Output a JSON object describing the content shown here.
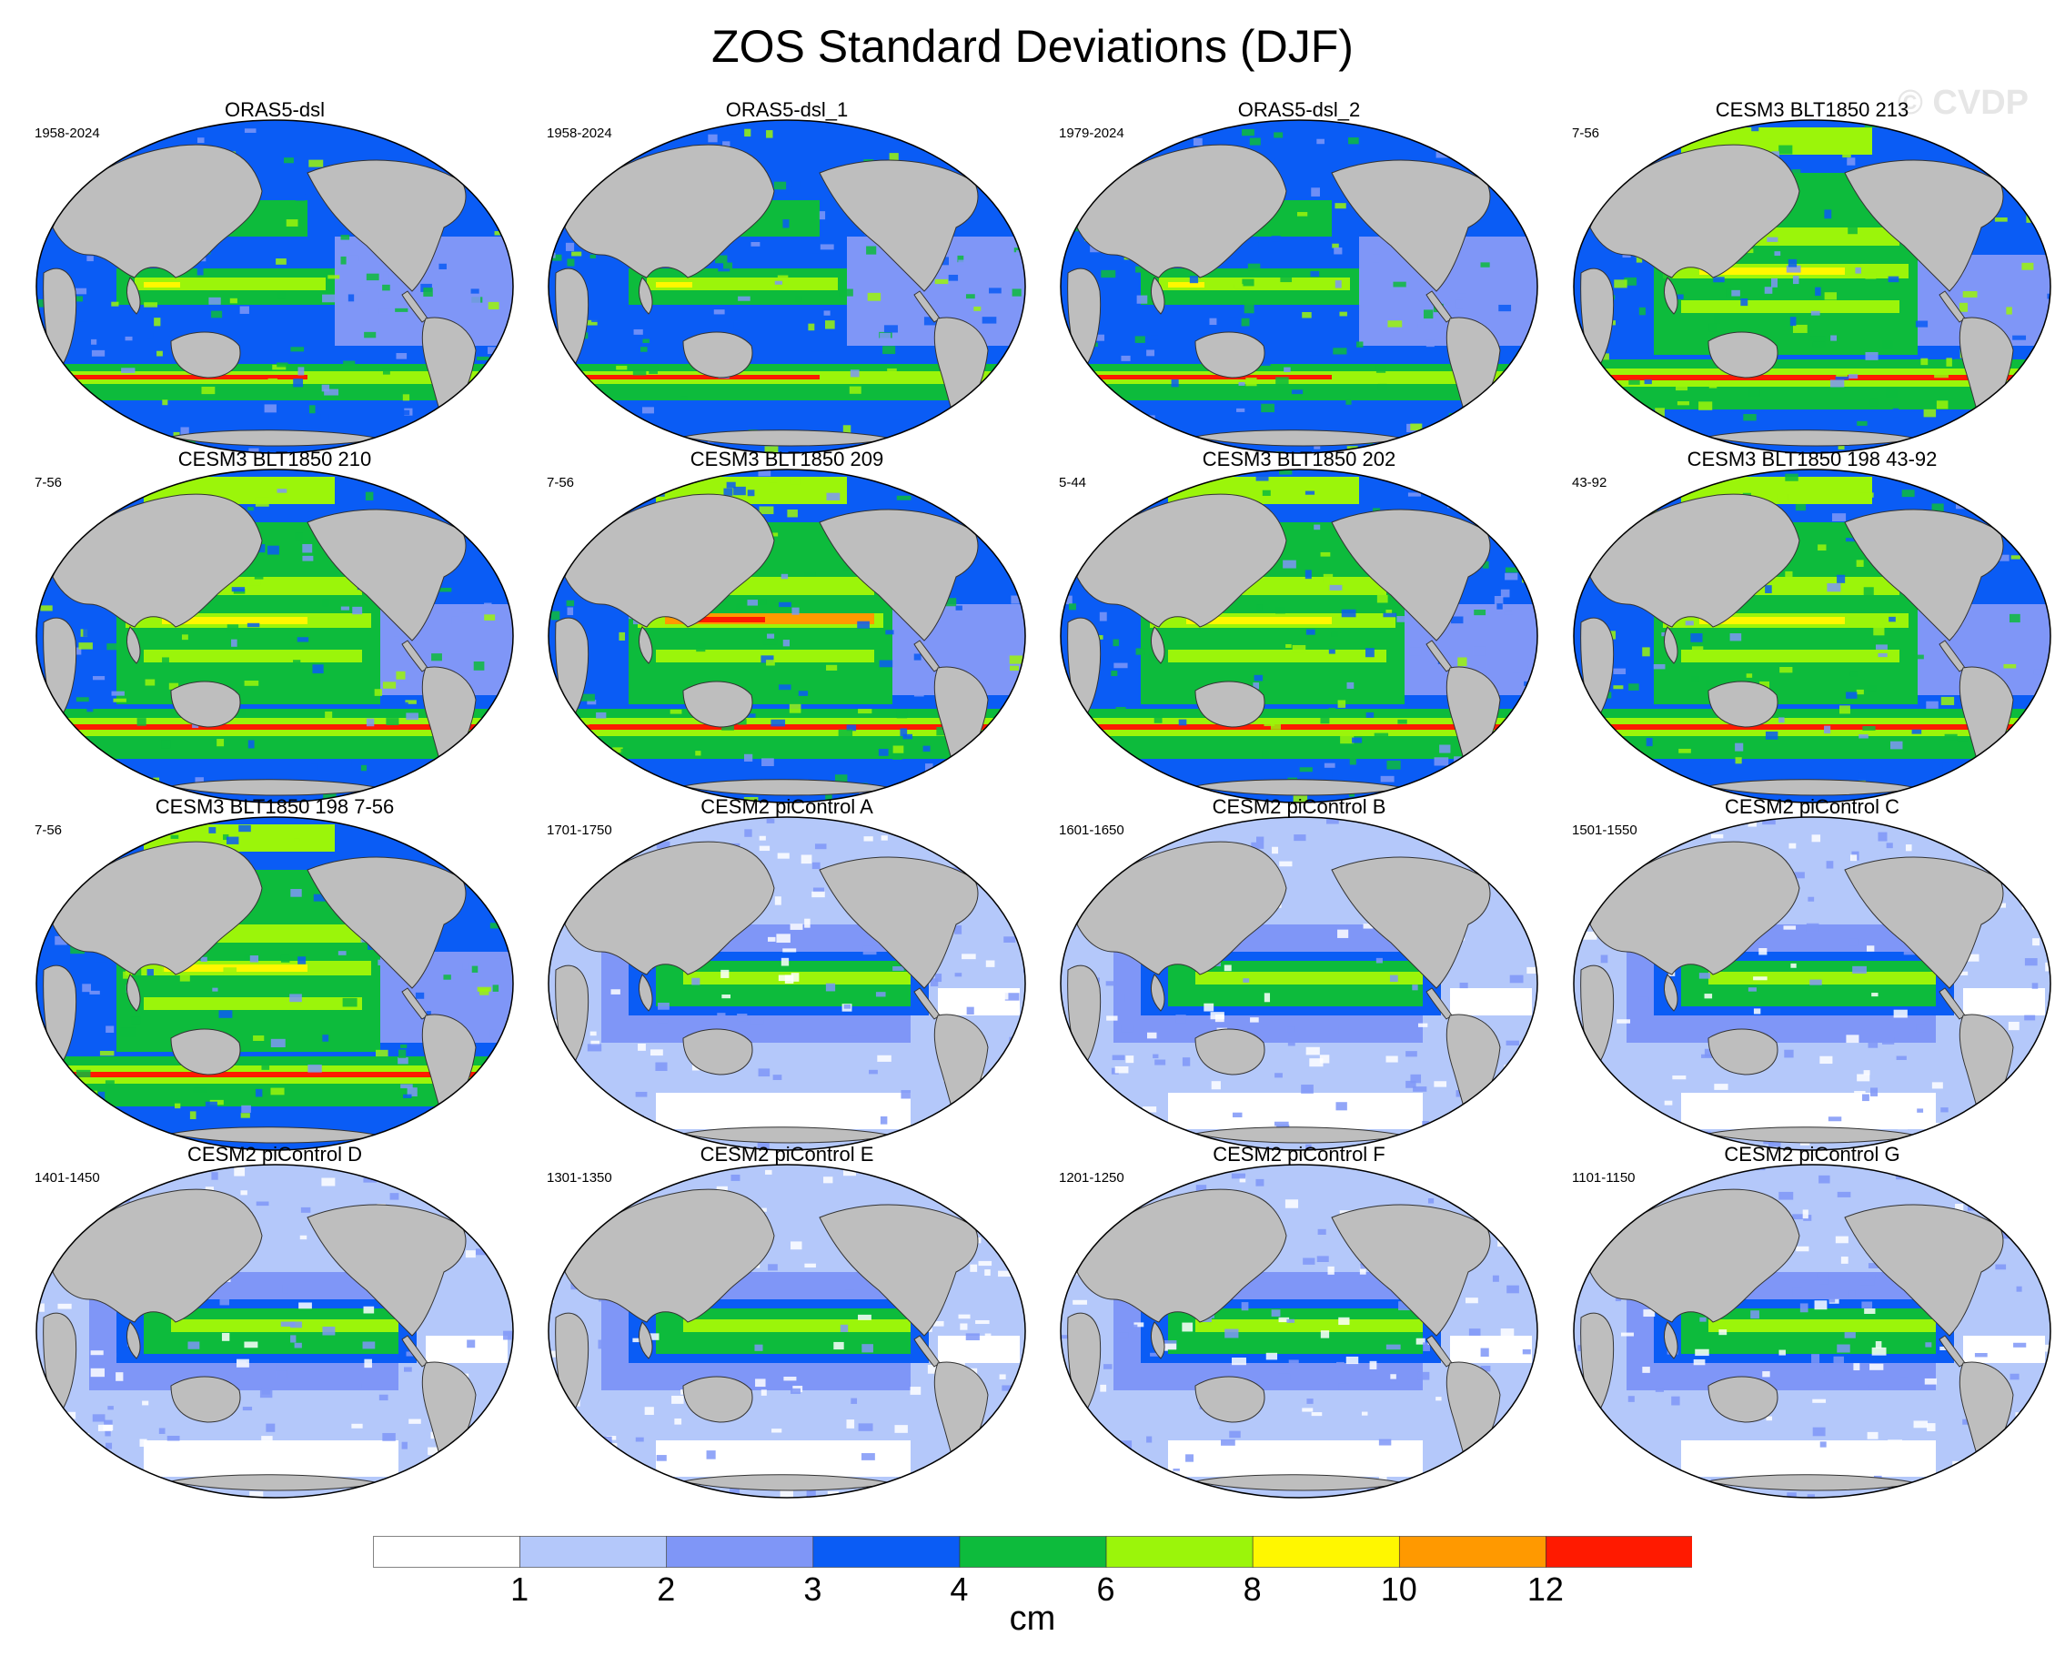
{
  "title": "ZOS Standard Deviations (DJF)",
  "watermark": "© CVDP",
  "panels": [
    {
      "title": "ORAS5-dsl",
      "years": "1958-2024",
      "kind": "obs"
    },
    {
      "title": "ORAS5-dsl_1",
      "years": "1958-2024",
      "kind": "obs"
    },
    {
      "title": "ORAS5-dsl_2",
      "years": "1979-2024",
      "kind": "obs"
    },
    {
      "title": "CESM3 BLT1850 213",
      "years": "7-56",
      "kind": "cesm3"
    },
    {
      "title": "CESM3 BLT1850 210",
      "years": "7-56",
      "kind": "cesm3"
    },
    {
      "title": "CESM3 BLT1850 209",
      "years": "7-56",
      "kind": "cesm3hi"
    },
    {
      "title": "CESM3 BLT1850 202",
      "years": "5-44",
      "kind": "cesm3"
    },
    {
      "title": "CESM3 BLT1850 198 43-92",
      "years": "43-92",
      "kind": "cesm3"
    },
    {
      "title": "CESM3 BLT1850 198 7-56",
      "years": "7-56",
      "kind": "cesm3"
    },
    {
      "title": "CESM2 piControl A",
      "years": "1701-1750",
      "kind": "cesm2"
    },
    {
      "title": "CESM2 piControl B",
      "years": "1601-1650",
      "kind": "cesm2"
    },
    {
      "title": "CESM2 piControl C",
      "years": "1501-1550",
      "kind": "cesm2"
    },
    {
      "title": "CESM2 piControl D",
      "years": "1401-1450",
      "kind": "cesm2"
    },
    {
      "title": "CESM2 piControl E",
      "years": "1301-1350",
      "kind": "cesm2"
    },
    {
      "title": "CESM2 piControl F",
      "years": "1201-1250",
      "kind": "cesm2"
    },
    {
      "title": "CESM2 piControl G",
      "years": "1101-1150",
      "kind": "cesm2"
    }
  ],
  "colorbar": {
    "units": "cm",
    "labels": [
      "1",
      "2",
      "3",
      "4",
      "6",
      "8",
      "10",
      "12"
    ],
    "colors": [
      "#ffffff",
      "#b4c8fa",
      "#7f96f7",
      "#0a5cf5",
      "#0dbb3c",
      "#9bf50a",
      "#fff700",
      "#ff9900",
      "#ff1a00"
    ]
  },
  "map_colors": {
    "land": "#bebebe",
    "coast": "#333333",
    "ice_white": "#ffffff"
  }
}
